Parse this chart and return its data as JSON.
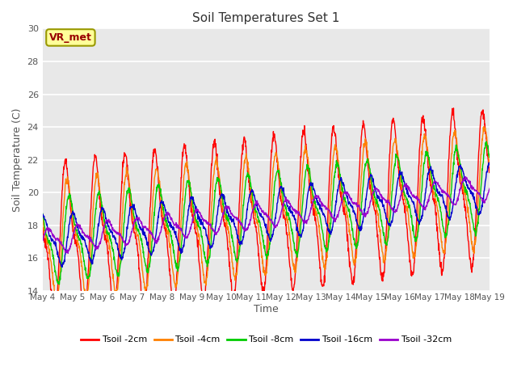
{
  "title": "Soil Temperatures Set 1",
  "xlabel": "Time",
  "ylabel": "Soil Temperature (C)",
  "ylim": [
    14,
    30
  ],
  "yticks": [
    14,
    16,
    18,
    20,
    22,
    24,
    26,
    28,
    30
  ],
  "bg_color": "#e8e8e8",
  "fig_color": "#ffffff",
  "annotation_text": "VR_met",
  "annotation_bg": "#ffff99",
  "annotation_border": "#999900",
  "colors": [
    "#ff0000",
    "#ff8000",
    "#00cc00",
    "#0000cc",
    "#9900cc"
  ],
  "labels": [
    "Tsoil -2cm",
    "Tsoil -4cm",
    "Tsoil -8cm",
    "Tsoil -16cm",
    "Tsoil -32cm"
  ],
  "xticklabels": [
    "May 4",
    "May 5",
    "May 6",
    "May 7",
    "May 8",
    "May 9",
    "May 10",
    "May 11",
    "May 12",
    "May 13",
    "May 14",
    "May 15",
    "May 16",
    "May 17",
    "May 18",
    "May 19"
  ],
  "n_days": 15,
  "ppd": 96,
  "base_temp": 17.0,
  "trend_rate": 0.22,
  "amplitudes": [
    5.5,
    4.2,
    3.0,
    1.8,
    0.9
  ],
  "phase_lags_h": [
    0,
    1.5,
    3.0,
    6.0,
    10.0
  ],
  "peak_hour": 14.0,
  "asymmetry": 0.35,
  "noise_std": [
    0.15,
    0.12,
    0.1,
    0.08,
    0.06
  ]
}
